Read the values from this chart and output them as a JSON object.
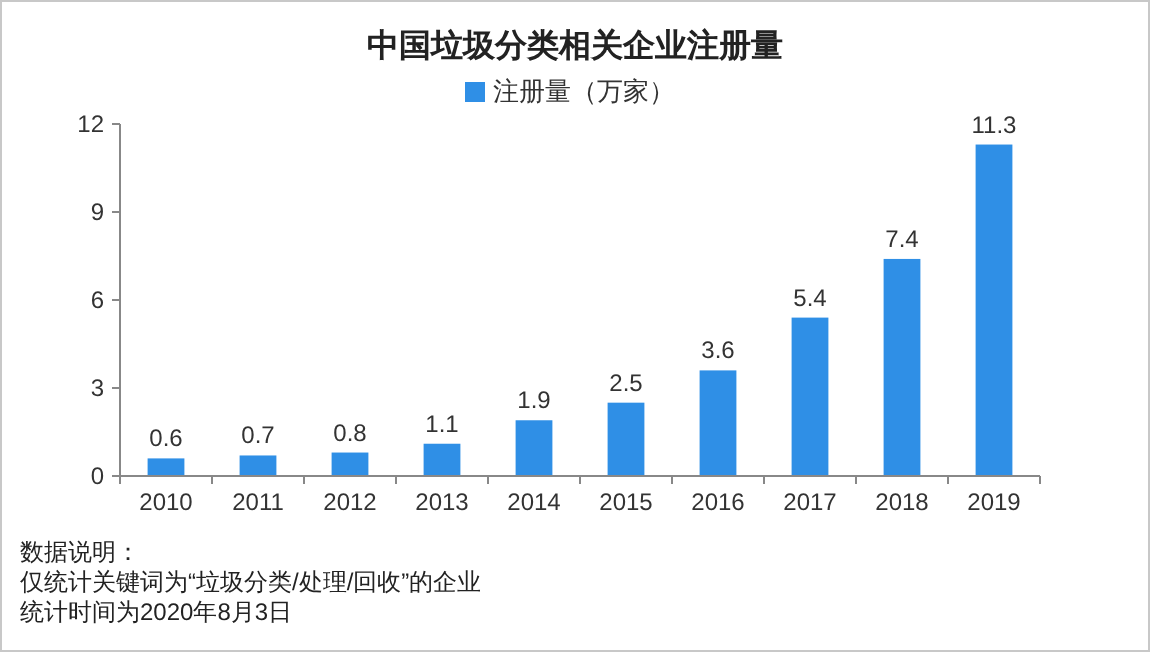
{
  "chart_data": {
    "type": "bar",
    "title": "中国垃圾分类相关企业注册量",
    "categories": [
      "2010",
      "2011",
      "2012",
      "2013",
      "2014",
      "2015",
      "2016",
      "2017",
      "2018",
      "2019"
    ],
    "series": [
      {
        "name": "注册量（万家）",
        "color": "#2f8fe6",
        "values": [
          0.6,
          0.7,
          0.8,
          1.1,
          1.9,
          2.5,
          3.6,
          5.4,
          7.4,
          11.3
        ]
      }
    ],
    "ylim": [
      0,
      12
    ],
    "yticks": [
      0,
      3,
      6,
      9,
      12
    ],
    "grid": false,
    "legend": "top",
    "data_labels": true,
    "annotations": [
      "数据说明：",
      "仅统计关键词为“垃圾分类/处理/回收”的企业",
      "统计时间为2020年8月3日"
    ]
  }
}
